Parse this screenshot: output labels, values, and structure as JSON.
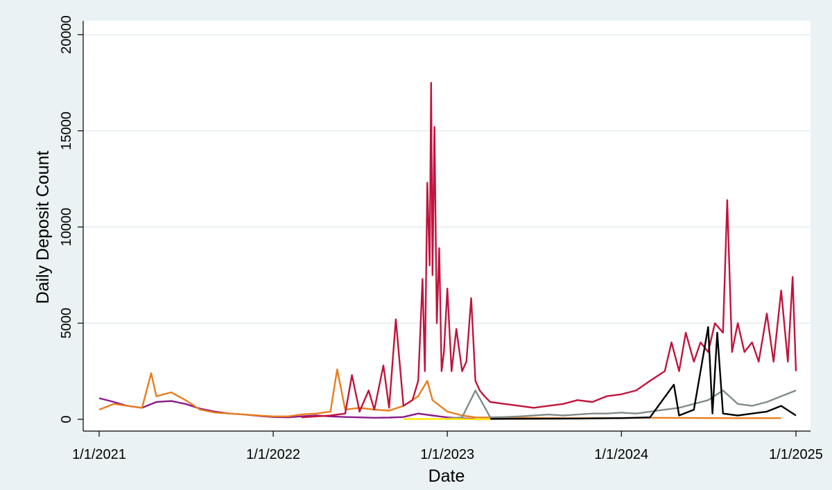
{
  "chart_data": {
    "type": "line",
    "xlabel": "Date",
    "ylabel": "Daily Deposit Count",
    "ylim": [
      0,
      20000
    ],
    "yticks": [
      0,
      5000,
      10000,
      15000,
      20000
    ],
    "xticks": [
      "2021-01-01",
      "2022-01-01",
      "2023-01-01",
      "2024-01-01",
      "2025-01-01"
    ],
    "xtick_labels": [
      "1/1/2021",
      "1/1/2022",
      "1/1/2023",
      "1/1/2024",
      "1/1/2025"
    ],
    "xlim": [
      "2020-12-01",
      "2025-01-31"
    ],
    "grid": "horizontal",
    "legend": "none",
    "series": [
      {
        "color": "#8b1a8b",
        "x": [
          "2021-01-01",
          "2021-02-01",
          "2021-03-01",
          "2021-04-01",
          "2021-05-01",
          "2021-06-01",
          "2021-07-01",
          "2021-08-01",
          "2021-09-01",
          "2021-10-01",
          "2021-11-01",
          "2021-12-01",
          "2022-01-01",
          "2022-02-01",
          "2022-03-01",
          "2022-04-01",
          "2022-05-01",
          "2022-06-01",
          "2022-07-01",
          "2022-08-01",
          "2022-09-01",
          "2022-10-01",
          "2022-11-01",
          "2022-12-01",
          "2023-01-01",
          "2023-02-01",
          "2023-03-01"
        ],
        "values": [
          1100,
          900,
          700,
          600,
          900,
          950,
          800,
          550,
          400,
          300,
          250,
          180,
          120,
          100,
          150,
          200,
          150,
          120,
          100,
          80,
          90,
          120,
          300,
          200,
          100,
          50,
          20
        ]
      },
      {
        "color": "#e87d1e",
        "x": [
          "2021-01-01",
          "2021-02-01",
          "2021-03-01",
          "2021-04-01",
          "2021-04-20",
          "2021-05-01",
          "2021-06-01",
          "2021-07-01",
          "2021-08-01",
          "2021-09-01",
          "2021-10-01",
          "2021-11-01",
          "2021-12-01",
          "2022-01-01",
          "2022-02-01",
          "2022-03-01",
          "2022-04-01",
          "2022-05-01",
          "2022-05-15",
          "2022-06-01",
          "2022-07-01",
          "2022-08-01",
          "2022-09-01",
          "2022-10-01",
          "2022-11-01",
          "2022-11-20",
          "2022-12-01",
          "2023-01-01",
          "2023-02-01",
          "2023-03-01",
          "2023-06-01",
          "2023-09-01",
          "2023-12-01",
          "2024-03-01",
          "2024-06-01",
          "2024-09-01",
          "2024-12-01"
        ],
        "values": [
          500,
          800,
          700,
          600,
          2400,
          1200,
          1400,
          1000,
          500,
          350,
          300,
          250,
          200,
          150,
          150,
          250,
          300,
          400,
          2600,
          500,
          600,
          500,
          450,
          700,
          1200,
          2000,
          1000,
          400,
          200,
          100,
          80,
          60,
          60,
          80,
          70,
          60,
          60
        ]
      },
      {
        "color": "#c0143c",
        "x": [
          "2022-03-01",
          "2022-04-01",
          "2022-05-01",
          "2022-06-01",
          "2022-06-15",
          "2022-07-01",
          "2022-07-20",
          "2022-08-01",
          "2022-08-20",
          "2022-09-01",
          "2022-09-15",
          "2022-10-01",
          "2022-10-20",
          "2022-11-01",
          "2022-11-10",
          "2022-11-15",
          "2022-11-20",
          "2022-11-25",
          "2022-11-28",
          "2022-12-01",
          "2022-12-05",
          "2022-12-10",
          "2022-12-15",
          "2022-12-20",
          "2022-12-25",
          "2023-01-01",
          "2023-01-10",
          "2023-01-20",
          "2023-02-01",
          "2023-02-10",
          "2023-02-20",
          "2023-03-01",
          "2023-03-10",
          "2023-03-20",
          "2023-04-01",
          "2023-05-01",
          "2023-06-01",
          "2023-07-01",
          "2023-08-01",
          "2023-09-01",
          "2023-10-01",
          "2023-11-01",
          "2023-12-01",
          "2024-01-01",
          "2024-02-01",
          "2024-03-01",
          "2024-04-01",
          "2024-04-15",
          "2024-05-01",
          "2024-05-15",
          "2024-06-01",
          "2024-06-15",
          "2024-07-01",
          "2024-07-15",
          "2024-08-01",
          "2024-08-10",
          "2024-08-20",
          "2024-09-01",
          "2024-09-15",
          "2024-10-01",
          "2024-10-15",
          "2024-11-01",
          "2024-11-15",
          "2024-12-01",
          "2024-12-15",
          "2024-12-25",
          "2025-01-01"
        ],
        "values": [
          100,
          150,
          200,
          300,
          2300,
          400,
          1500,
          500,
          2800,
          600,
          5200,
          700,
          1000,
          2000,
          7300,
          2500,
          12300,
          8000,
          17500,
          7500,
          15200,
          5000,
          8900,
          2500,
          3500,
          6800,
          2500,
          4700,
          2500,
          3000,
          6300,
          2000,
          1500,
          1200,
          900,
          800,
          700,
          600,
          700,
          800,
          1000,
          900,
          1200,
          1300,
          1500,
          2000,
          2500,
          4000,
          2500,
          4500,
          3000,
          4000,
          3500,
          5000,
          4500,
          11400,
          3500,
          5000,
          3500,
          4000,
          3000,
          5500,
          3000,
          6700,
          3000,
          7400,
          2500
        ]
      },
      {
        "color": "#7f8c87",
        "x": [
          "2023-01-01",
          "2023-02-01",
          "2023-03-01",
          "2023-04-01",
          "2023-05-01",
          "2023-06-01",
          "2023-07-01",
          "2023-08-01",
          "2023-09-01",
          "2023-10-01",
          "2023-11-01",
          "2023-12-01",
          "2024-01-01",
          "2024-02-01",
          "2024-03-01",
          "2024-04-01",
          "2024-05-01",
          "2024-06-01",
          "2024-07-01",
          "2024-08-01",
          "2024-09-01",
          "2024-10-01",
          "2024-11-01",
          "2024-12-01",
          "2025-01-01"
        ],
        "values": [
          50,
          100,
          1500,
          100,
          120,
          150,
          200,
          250,
          200,
          250,
          300,
          300,
          350,
          300,
          400,
          500,
          600,
          800,
          1000,
          1500,
          800,
          700,
          900,
          1200,
          1500
        ]
      },
      {
        "color": "#000000",
        "x": [
          "2023-04-01",
          "2023-07-01",
          "2023-10-01",
          "2024-01-01",
          "2024-03-01",
          "2024-04-20",
          "2024-05-01",
          "2024-06-01",
          "2024-07-01",
          "2024-07-10",
          "2024-07-20",
          "2024-08-01",
          "2024-09-01",
          "2024-10-01",
          "2024-11-01",
          "2024-12-01",
          "2025-01-01"
        ],
        "values": [
          20,
          30,
          40,
          60,
          100,
          1800,
          200,
          500,
          4800,
          300,
          4500,
          300,
          200,
          300,
          400,
          700,
          200
        ]
      },
      {
        "color": "#ffe600",
        "x": [
          "2022-10-01",
          "2022-11-01",
          "2022-12-01",
          "2023-01-01",
          "2023-02-01",
          "2023-03-01",
          "2023-04-01"
        ],
        "values": [
          10,
          15,
          20,
          15,
          10,
          5,
          0
        ]
      }
    ]
  }
}
